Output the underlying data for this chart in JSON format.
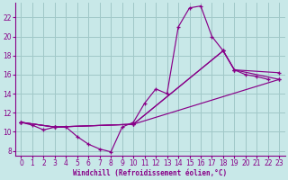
{
  "background_color": "#c8e8e8",
  "grid_color": "#a0c8c8",
  "line_color": "#880088",
  "xlabel": "Windchill (Refroidissement éolien,°C)",
  "xlim": [
    -0.5,
    23.5
  ],
  "ylim": [
    7.5,
    23.5
  ],
  "yticks": [
    8,
    10,
    12,
    14,
    16,
    18,
    20,
    22
  ],
  "xticks": [
    0,
    1,
    2,
    3,
    4,
    5,
    6,
    7,
    8,
    9,
    10,
    11,
    12,
    13,
    14,
    15,
    16,
    17,
    18,
    19,
    20,
    21,
    22,
    23
  ],
  "series1_x": [
    0,
    1,
    2,
    3,
    4,
    5,
    6,
    7,
    8,
    9,
    10,
    11,
    12,
    13,
    14,
    15,
    16,
    17,
    18,
    19,
    20,
    21,
    22,
    23
  ],
  "series1_y": [
    11.0,
    10.7,
    10.2,
    10.5,
    10.5,
    9.5,
    8.7,
    8.2,
    7.9,
    10.5,
    11.0,
    13.0,
    14.5,
    14.0,
    21.0,
    23.0,
    23.2,
    20.0,
    18.5,
    16.5,
    16.0,
    15.8,
    15.5,
    null
  ],
  "series2_x": [
    0,
    3,
    10,
    23
  ],
  "series2_y": [
    11.0,
    10.5,
    10.8,
    15.5
  ],
  "series3_x": [
    0,
    3,
    10,
    18,
    19,
    23
  ],
  "series3_y": [
    11.0,
    10.5,
    10.8,
    18.5,
    16.5,
    16.2
  ],
  "series4_x": [
    0,
    3,
    10,
    18,
    19,
    23
  ],
  "series4_y": [
    11.0,
    10.5,
    10.8,
    18.5,
    16.5,
    15.5
  ]
}
